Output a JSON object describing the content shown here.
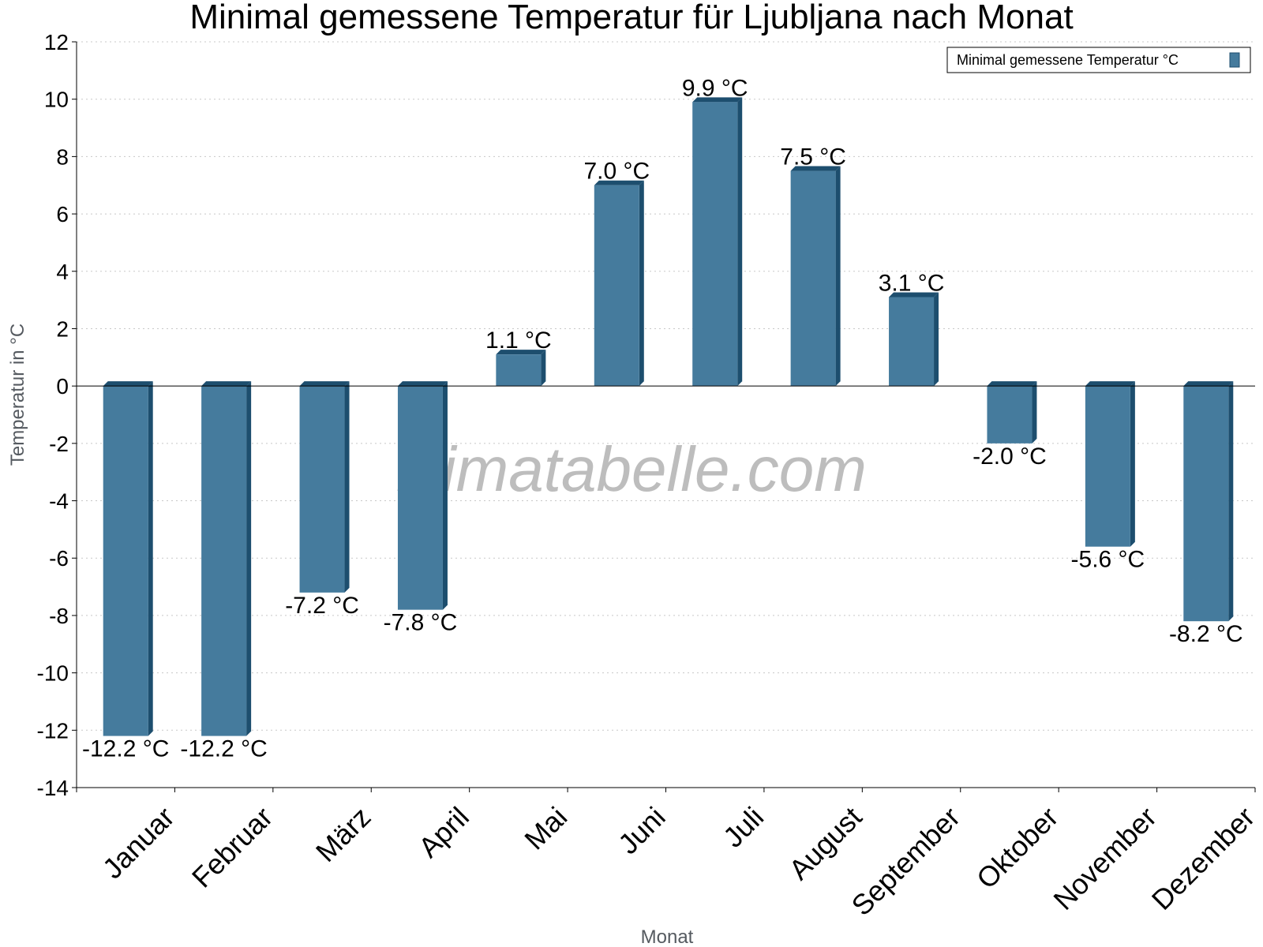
{
  "chart_data": {
    "type": "bar",
    "title": "Minimal gemessene Temperatur für Ljubljana nach Monat",
    "xlabel": "Monat",
    "ylabel": "Temperatur in °C",
    "ylim": [
      -14,
      12
    ],
    "yticks": [
      12,
      10,
      8,
      6,
      4,
      2,
      0,
      -2,
      -4,
      -6,
      -8,
      -10,
      -12,
      -14
    ],
    "grid": true,
    "legend_position": "top-right",
    "categories": [
      "Januar",
      "Februar",
      "März",
      "April",
      "Mai",
      "Juni",
      "Juli",
      "August",
      "September",
      "Oktober",
      "November",
      "Dezember"
    ],
    "series": [
      {
        "name": "Minimal gemessene Temperatur °C",
        "values": [
          -12.2,
          -12.2,
          -7.2,
          -7.8,
          1.1,
          7.0,
          9.9,
          7.5,
          3.1,
          -2.0,
          -5.6,
          -8.2
        ],
        "labels": [
          "-12.2 °C",
          "-12.2 °C",
          "-7.2 °C",
          "-7.8 °C",
          "1.1 °C",
          "7.0 °C",
          "9.9 °C",
          "7.5 °C",
          "3.1 °C",
          "-2.0 °C",
          "-5.6 °C",
          "-8.2 °C"
        ]
      }
    ],
    "colors": {
      "bar": "#457b9d",
      "bar_side": "#1d4e6e",
      "zero_line": "#000000"
    },
    "watermark": "klimatabelle.com"
  }
}
